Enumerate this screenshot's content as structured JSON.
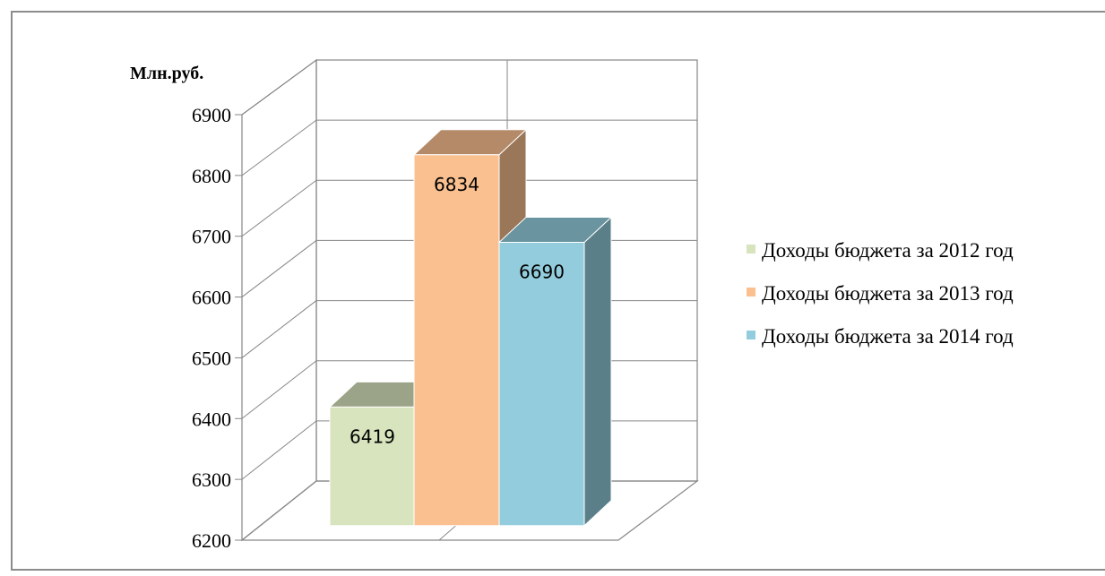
{
  "chart_data": {
    "type": "bar",
    "ylabel": "Млн.руб.",
    "ylim": [
      6200,
      6900
    ],
    "ticks": [
      6200,
      6300,
      6400,
      6500,
      6600,
      6700,
      6800,
      6900
    ],
    "grid": true,
    "legend_position": "right",
    "series": [
      {
        "name": "Доходы бюджета за 2012 год",
        "value": 6419,
        "label": "6419",
        "color": "#d7e4bd"
      },
      {
        "name": "Доходы бюджета за 2013 год",
        "value": 6834,
        "label": "6834",
        "color": "#fac090"
      },
      {
        "name": "Доходы бюджета за 2014 год",
        "value": 6690,
        "label": "6690",
        "color": "#93cddd"
      }
    ]
  }
}
